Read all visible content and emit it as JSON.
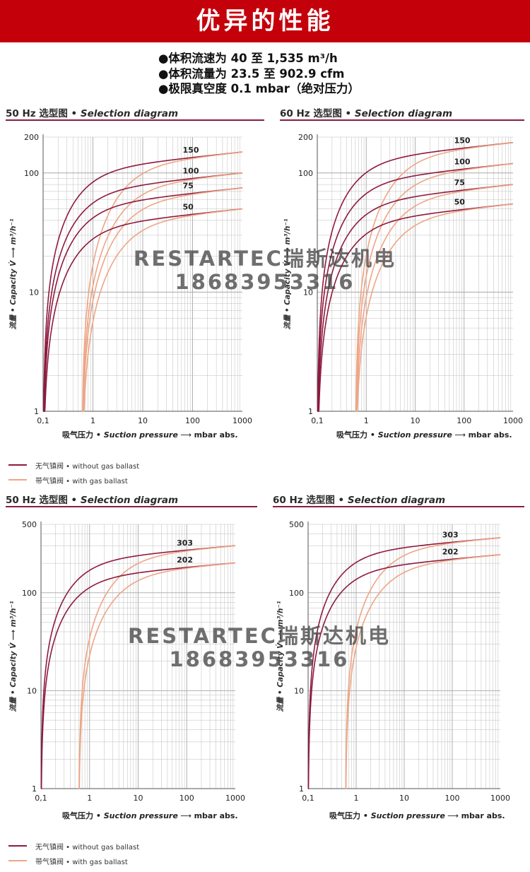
{
  "header": {
    "title": "优异的性能"
  },
  "specs": [
    "●体积流速为 40 至 1,535 m³/h",
    "●体积流量为 23.5 至 902.9 cfm",
    "●极限真空度 0.1 mbar（绝对压力）"
  ],
  "colors": {
    "without_ballast": "#8e1a3e",
    "with_ballast": "#eea585",
    "header_bg": "#c4000b",
    "grid": "#bdbdbd"
  },
  "legend": {
    "without": "无气镇阀 • without gas ballast",
    "with": "带气镇阀 • with gas ballast"
  },
  "watermark": {
    "line1": "RESTARTEC瑞斯达机电",
    "line2": "18683953316"
  },
  "chart_data": [
    {
      "type": "line",
      "title_cn": "50 Hz 选型图 • ",
      "title_en": "Selection diagram",
      "xlabel_cn": "吸气压力 • ",
      "xlabel_en": "Suction pressure",
      "xunit": "mbar abs.",
      "ylabel": "流量 • Capacity V̇ ⟶ m³/h⁻¹",
      "x_scale": "log",
      "y_scale": "log",
      "xlim": [
        0.1,
        1000
      ],
      "ylim": [
        1,
        200
      ],
      "xticks": [
        "0,1",
        "1",
        "10",
        "100",
        "1000"
      ],
      "yticks": [
        "1",
        "10",
        "100",
        "200"
      ],
      "series": [
        {
          "name": "150",
          "nominal": 150,
          "ballast": false
        },
        {
          "name": "150",
          "nominal": 150,
          "ballast": true
        },
        {
          "name": "100",
          "nominal": 100,
          "ballast": false
        },
        {
          "name": "100",
          "nominal": 100,
          "ballast": true
        },
        {
          "name": "75",
          "nominal": 75,
          "ballast": false
        },
        {
          "name": "75",
          "nominal": 75,
          "ballast": true
        },
        {
          "name": "50",
          "nominal": 50,
          "ballast": false
        },
        {
          "name": "50",
          "nominal": 50,
          "ballast": true
        }
      ]
    },
    {
      "type": "line",
      "title_cn": "60 Hz 选型图 • ",
      "title_en": "Selection diagram",
      "xlabel_cn": "吸气压力 • ",
      "xlabel_en": "Suction pressure",
      "xunit": "mbar abs.",
      "ylabel": "流量 • Capacity V̇ ⟶ m³/h⁻¹",
      "x_scale": "log",
      "y_scale": "log",
      "xlim": [
        0.1,
        1000
      ],
      "ylim": [
        1,
        200
      ],
      "xticks": [
        "0,1",
        "1",
        "10",
        "100",
        "1000"
      ],
      "yticks": [
        "1",
        "10",
        "100",
        "200"
      ],
      "series": [
        {
          "name": "150",
          "nominal": 180,
          "ballast": false
        },
        {
          "name": "150",
          "nominal": 180,
          "ballast": true
        },
        {
          "name": "100",
          "nominal": 120,
          "ballast": false
        },
        {
          "name": "100",
          "nominal": 120,
          "ballast": true
        },
        {
          "name": "75",
          "nominal": 80,
          "ballast": false
        },
        {
          "name": "75",
          "nominal": 80,
          "ballast": true
        },
        {
          "name": "50",
          "nominal": 55,
          "ballast": false
        },
        {
          "name": "50",
          "nominal": 55,
          "ballast": true
        }
      ]
    },
    {
      "type": "line",
      "title_cn": "50 Hz 选型图 • ",
      "title_en": "Selection diagram",
      "xlabel_cn": "吸气压力 • ",
      "xlabel_en": "Suction pressure",
      "xunit": "mbar abs.",
      "ylabel": "流量 • Capacity V̇ ⟶ m³/h⁻¹",
      "x_scale": "log",
      "y_scale": "log",
      "xlim": [
        0.1,
        1000
      ],
      "ylim": [
        1,
        500
      ],
      "xticks": [
        "0,1",
        "1",
        "10",
        "100",
        "1000"
      ],
      "yticks": [
        "1",
        "10",
        "100",
        "500"
      ],
      "series": [
        {
          "name": "303",
          "nominal": 303,
          "ballast": false
        },
        {
          "name": "303",
          "nominal": 303,
          "ballast": true
        },
        {
          "name": "202",
          "nominal": 202,
          "ballast": false
        },
        {
          "name": "202",
          "nominal": 202,
          "ballast": true
        }
      ]
    },
    {
      "type": "line",
      "title_cn": "60 Hz 选型图 • ",
      "title_en": "Selection diagram",
      "xlabel_cn": "吸气压力 • ",
      "xlabel_en": "Suction pressure",
      "xunit": "mbar abs.",
      "ylabel": "流量 • Capacity V̇ ⟶ m³/h⁻¹",
      "x_scale": "log",
      "y_scale": "log",
      "xlim": [
        0.1,
        1000
      ],
      "ylim": [
        1,
        500
      ],
      "xticks": [
        "0,1",
        "1",
        "10",
        "100",
        "1000"
      ],
      "yticks": [
        "1",
        "10",
        "100",
        "500"
      ],
      "series": [
        {
          "name": "303",
          "nominal": 365,
          "ballast": false
        },
        {
          "name": "303",
          "nominal": 365,
          "ballast": true
        },
        {
          "name": "202",
          "nominal": 245,
          "ballast": false
        },
        {
          "name": "202",
          "nominal": 245,
          "ballast": true
        }
      ]
    }
  ]
}
